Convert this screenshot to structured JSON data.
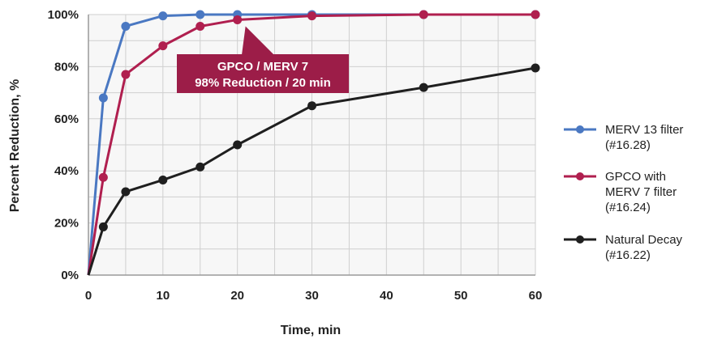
{
  "chart_data": {
    "type": "line",
    "xlabel": "Time, min",
    "ylabel": "Percent Reduction, %",
    "xlim": [
      0,
      60
    ],
    "ylim": [
      0,
      100
    ],
    "x_ticks": [
      "0",
      "10",
      "20",
      "30",
      "40",
      "50",
      "60"
    ],
    "y_ticks": [
      "0%",
      "20%",
      "40%",
      "60%",
      "80%",
      "100%"
    ],
    "grid": true,
    "legend_position": "right",
    "series": [
      {
        "name": "MERV 13 filter (#16.28)",
        "legend_lines": [
          "MERV 13 filter",
          "(#16.28)"
        ],
        "color": "#4a78c2",
        "x": [
          0,
          2,
          5,
          10,
          15,
          20,
          30,
          45,
          60
        ],
        "y": [
          0,
          68,
          95.5,
          99.5,
          100,
          100,
          100,
          100,
          100
        ]
      },
      {
        "name": "GPCO with MERV 7 filter (#16.24)",
        "legend_lines": [
          "GPCO with",
          "MERV 7 filter",
          "(#16.24)"
        ],
        "color": "#b01f4f",
        "x": [
          0,
          2,
          5,
          10,
          15,
          20,
          30,
          45,
          60
        ],
        "y": [
          0,
          37.5,
          77,
          88,
          95.5,
          98,
          99.5,
          100,
          100
        ]
      },
      {
        "name": "Natural Decay (#16.22)",
        "legend_lines": [
          "Natural Decay",
          "(#16.22)"
        ],
        "color": "#1f1f1f",
        "x": [
          0,
          2,
          5,
          10,
          15,
          20,
          30,
          45,
          60
        ],
        "y": [
          0,
          18.5,
          32,
          36.5,
          41.5,
          50,
          65,
          72,
          79.5
        ]
      }
    ],
    "annotation": {
      "lines": [
        "GPCO / MERV 7",
        "98% Reduction / 20 min"
      ],
      "background": "#9c1d48",
      "points_to": {
        "x": 20,
        "y": 98
      }
    }
  }
}
